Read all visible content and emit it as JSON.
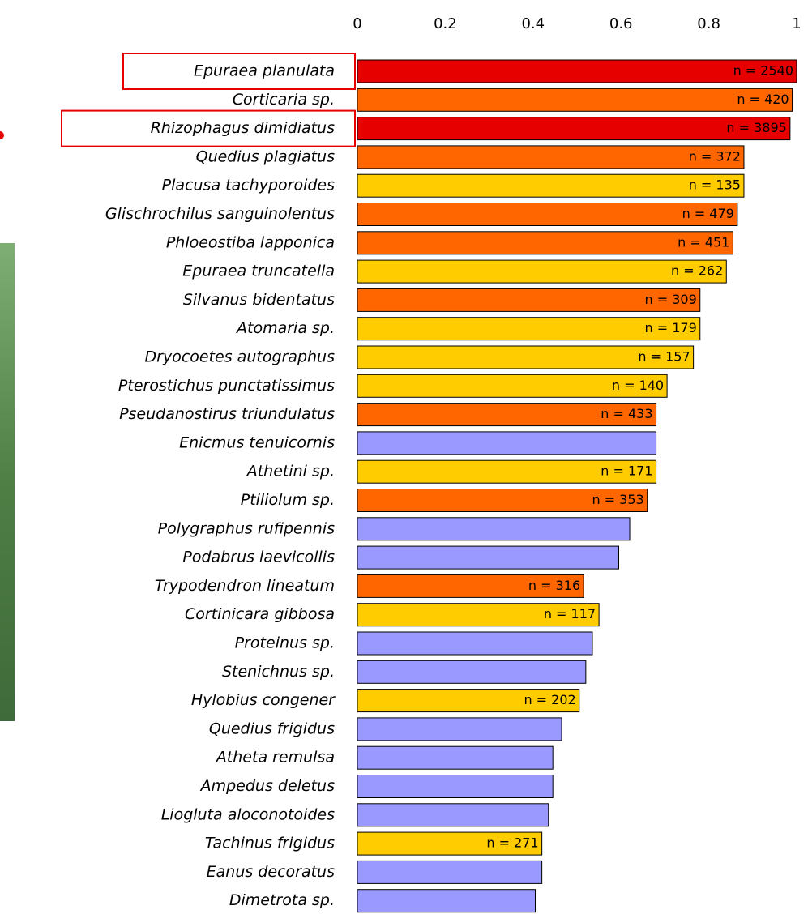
{
  "chart_data": {
    "type": "bar",
    "orientation": "horizontal",
    "categories": [
      "Epuraea planulata",
      "Corticaria sp.",
      "Rhizophagus dimidiatus",
      "Quedius plagiatus",
      "Placusa tachyporoides",
      "Glischrochilus sanguinolentus",
      "Phloeostiba lapponica",
      "Epuraea truncatella",
      "Silvanus bidentatus",
      "Atomaria sp.",
      "Dryocoetes autographus",
      "Pterostichus punctatissimus",
      "Pseudanostirus triundulatus",
      "Enicmus tenuicornis",
      "Athetini sp.",
      "Ptiliolum sp.",
      "Polygraphus rufipennis",
      "Podabrus laevicollis",
      "Trypodendron lineatum",
      "Cortinicara gibbosa",
      "Proteinus sp.",
      "Stenichnus sp.",
      "Hylobius congener",
      "Quedius frigidus",
      "Atheta remulsa",
      "Ampedus deletus",
      "Liogluta aloconotoides",
      "Tachinus frigidus",
      "Eanus decoratus",
      "Dimetrota sp."
    ],
    "values": [
      1.0,
      0.99,
      0.985,
      0.88,
      0.88,
      0.865,
      0.855,
      0.84,
      0.78,
      0.78,
      0.765,
      0.705,
      0.68,
      0.68,
      0.68,
      0.66,
      0.62,
      0.595,
      0.515,
      0.55,
      0.535,
      0.52,
      0.505,
      0.465,
      0.445,
      0.445,
      0.435,
      0.42,
      0.42,
      0.405
    ],
    "colors": [
      "#e60000",
      "#ff6600",
      "#e60000",
      "#ff6600",
      "#ffcc00",
      "#ff6600",
      "#ff6600",
      "#ffcc00",
      "#ff6600",
      "#ffcc00",
      "#ffcc00",
      "#ffcc00",
      "#ff6600",
      "#9999ff",
      "#ffcc00",
      "#ff6600",
      "#9999ff",
      "#9999ff",
      "#ff6600",
      "#ffcc00",
      "#9999ff",
      "#9999ff",
      "#ffcc00",
      "#9999ff",
      "#9999ff",
      "#9999ff",
      "#9999ff",
      "#ffcc00",
      "#9999ff",
      "#9999ff"
    ],
    "annotations": [
      "n = 2540",
      "n = 420",
      "n = 3895",
      "n = 372",
      "n = 135",
      "n = 479",
      "n = 451",
      "n = 262",
      "n = 309",
      "n = 179",
      "n = 157",
      "n = 140",
      "n = 433",
      null,
      "n = 171",
      "n = 353",
      null,
      null,
      "n = 316",
      "n = 117",
      null,
      null,
      "n = 202",
      null,
      null,
      null,
      null,
      "n = 271",
      null,
      null
    ],
    "highlighted": [
      0,
      2
    ],
    "xlim": [
      0,
      1
    ],
    "xticks": [
      0,
      0.2,
      0.4,
      0.6,
      0.8,
      1
    ]
  }
}
